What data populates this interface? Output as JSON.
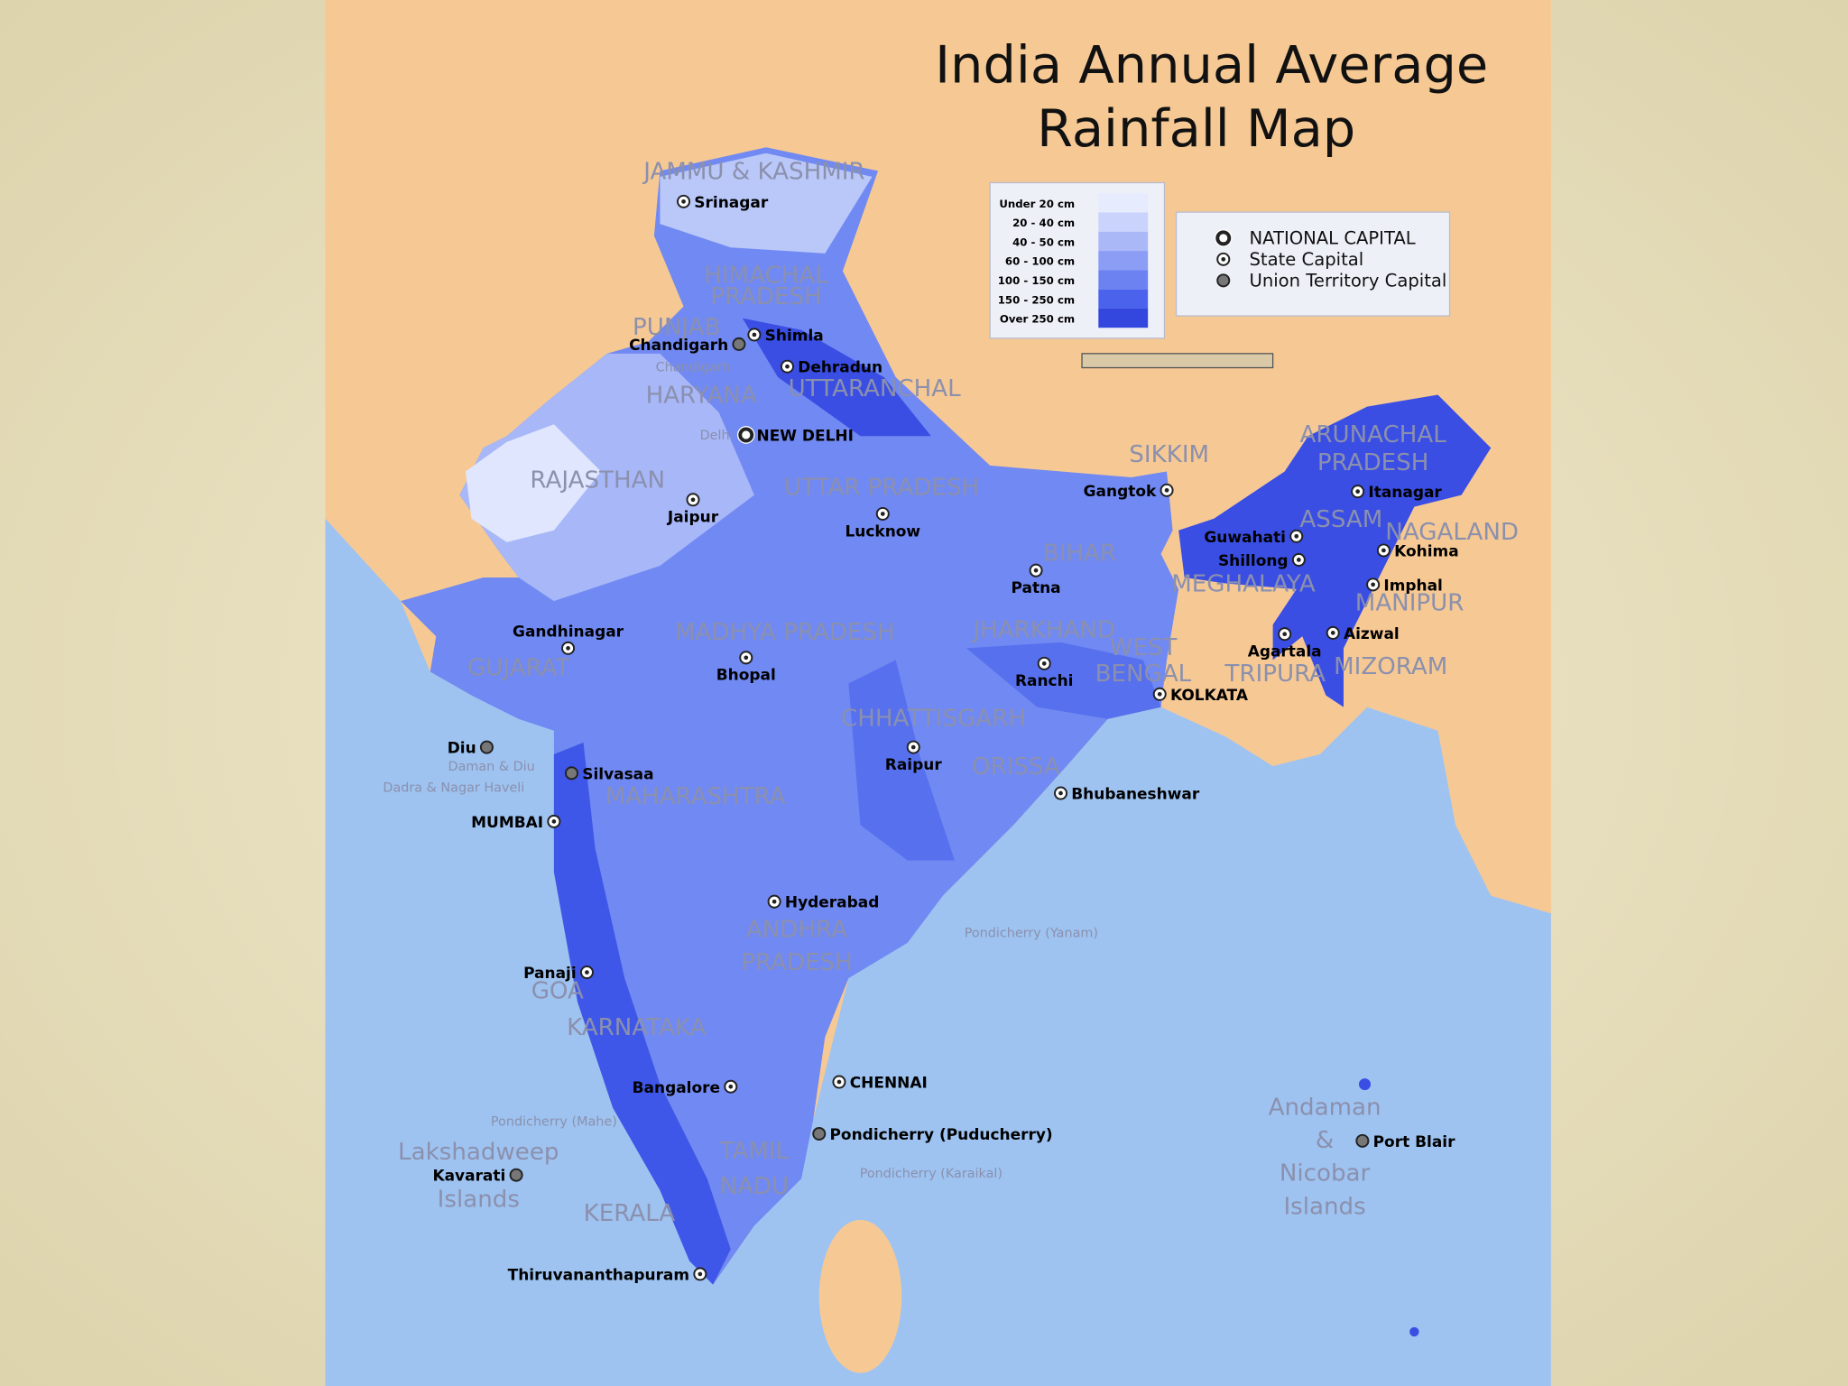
{
  "title": [
    "India Annual Average",
    "Rainfall Map"
  ],
  "rainfall_legend": [
    {
      "label": "Under 20 cm",
      "color": "#e6ebfd"
    },
    {
      "label": "20 - 40 cm",
      "color": "#c9d3fb"
    },
    {
      "label": "40 - 50 cm",
      "color": "#aab8f8"
    },
    {
      "label": "60 - 100 cm",
      "color": "#8b9df5"
    },
    {
      "label": "100 - 150 cm",
      "color": "#6c82f1"
    },
    {
      "label": "150 - 250 cm",
      "color": "#4b63ec"
    },
    {
      "label": "Over 250 cm",
      "color": "#3347df"
    }
  ],
  "capital_legend": [
    "NATIONAL CAPITAL",
    "State Capital",
    "Union Territory Capital"
  ],
  "regions": [
    [
      "JAMMU & KASHMIR"
    ],
    [
      "HIMACHAL",
      "PRADESH"
    ],
    [
      "PUNJAB"
    ],
    [
      "HARYANA"
    ],
    [
      "UTTARANCHAL"
    ],
    [
      "RAJASTHAN"
    ],
    [
      "UTTAR PRADESH"
    ],
    [
      "SIKKIM"
    ],
    [
      "ARUNACHAL",
      "PRADESH"
    ],
    [
      "ASSAM"
    ],
    [
      "NAGALAND"
    ],
    [
      "MEGHALAYA"
    ],
    [
      "MANIPUR"
    ],
    [
      "BIHAR"
    ],
    [
      "JHARKHAND"
    ],
    [
      "WEST",
      "BENGAL"
    ],
    [
      "TRIPURA"
    ],
    [
      "MIZORAM"
    ],
    [
      "GUJARAT"
    ],
    [
      "MADHYA PRADESH"
    ],
    [
      "CHHATTISGARH"
    ],
    [
      "ORISSA"
    ],
    [
      "MAHARASHTRA"
    ],
    [
      "ANDHRA",
      "PRADESH"
    ],
    [
      "GOA"
    ],
    [
      "KARNATAKA"
    ],
    [
      "TAMIL",
      "NADU"
    ],
    [
      "KERALA"
    ],
    [
      "Lakshadweep",
      "Islands"
    ],
    [
      "Andaman",
      "&",
      "Nicobar",
      "Islands"
    ],
    [
      "Daman & Diu"
    ],
    [
      "Dadra & Nagar Haveli"
    ],
    [
      "Chandigarh"
    ],
    [
      "Delhi"
    ],
    [
      "Pondicherry (Yanam)"
    ],
    [
      "Pondicherry (Mahe)"
    ],
    [
      "Pondicherry (Karaikal)"
    ]
  ],
  "cities": [
    "Srinagar",
    "Shimla",
    "Chandigarh",
    "Dehradun",
    "NEW DELHI",
    "Jaipur",
    "Lucknow",
    "Gangtok",
    "Itanagar",
    "Guwahati",
    "Shillong",
    "Kohima",
    "Imphal",
    "Aizwal",
    "Agartala",
    "Patna",
    "Ranchi",
    "KOLKATA",
    "Gandhinagar",
    "Bhopal",
    "Raipur",
    "Bhubaneshwar",
    "Diu",
    "Silvasaa",
    "MUMBAI",
    "Hyderabad",
    "Panaji",
    "Bangalore",
    "CHENNAI",
    "Pondicherry (Puducherry)",
    "Kavarati",
    "Thiruvananthapuram",
    "Port Blair"
  ]
}
